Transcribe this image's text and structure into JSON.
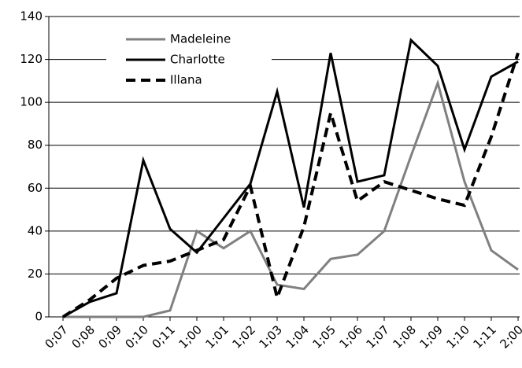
{
  "chart_data": {
    "type": "line",
    "categories": [
      "0;07",
      "0;08",
      "0;09",
      "0;10",
      "0;11",
      "1;00",
      "1;01",
      "1;02",
      "1;03",
      "1;04",
      "1;05",
      "1;06",
      "1;07",
      "1;08",
      "1;09",
      "1;10",
      "1;11",
      "2;00"
    ],
    "series": [
      {
        "name": "Madeleine",
        "color": "#808080",
        "line_style": "solid",
        "values": [
          0,
          0,
          0,
          0,
          3,
          40,
          32,
          40,
          15,
          13,
          27,
          29,
          40,
          75,
          109,
          63,
          31,
          22
        ]
      },
      {
        "name": "Charlotte",
        "color": "#000000",
        "line_style": "solid",
        "values": [
          0,
          7,
          11,
          73,
          41,
          30,
          46,
          62,
          105,
          51,
          123,
          63,
          66,
          129,
          117,
          78,
          112,
          119
        ]
      },
      {
        "name": "Illana",
        "color": "#000000",
        "line_style": "dashed",
        "values": [
          0,
          8,
          18,
          24,
          26,
          31,
          36,
          61,
          9,
          42,
          95,
          54,
          63,
          59,
          55,
          52,
          84,
          123
        ]
      }
    ],
    "ylim": [
      0,
      140
    ],
    "yticks": [
      0,
      20,
      40,
      60,
      80,
      100,
      120,
      140
    ],
    "grid": true,
    "legend": "upper left"
  }
}
